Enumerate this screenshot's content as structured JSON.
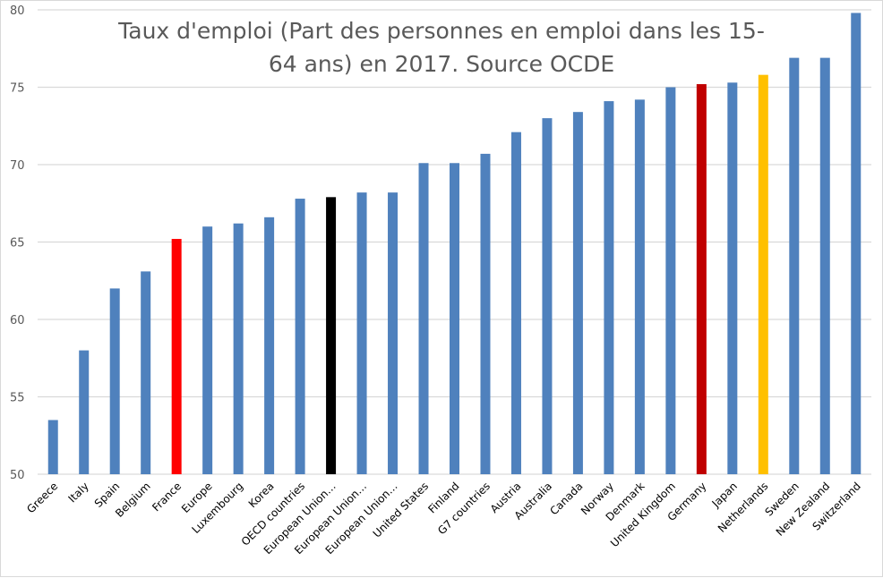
{
  "chart_data": {
    "type": "bar",
    "title_lines": [
      "Taux d'emploi (Part des personnes en emploi dans les 15-",
      "64 ans) en 2017. Source OCDE"
    ],
    "xlabel": "",
    "ylabel": "",
    "ylim": [
      50,
      80
    ],
    "yticks": [
      50,
      55,
      60,
      65,
      70,
      75,
      80
    ],
    "grid": true,
    "legend": "none",
    "categories": [
      "Greece",
      "Italy",
      "Spain",
      "Belgium",
      "France",
      "Europe",
      "Luxembourg",
      "Korea",
      "OECD countries",
      "European Union…",
      "European Union…",
      "European Union…",
      "United States",
      "Finland",
      "G7 countries",
      "Austria",
      "Australia",
      "Canada",
      "Norway",
      "Denmark",
      "United Kingdom",
      "Germany",
      "Japan",
      "Netherlands",
      "Sweden",
      "New Zealand",
      "Switzerland"
    ],
    "values": [
      53.5,
      58.0,
      62.0,
      63.1,
      65.2,
      66.0,
      66.2,
      66.6,
      67.8,
      67.9,
      68.2,
      68.2,
      70.1,
      70.1,
      70.7,
      72.1,
      73.0,
      73.4,
      74.1,
      74.2,
      75.0,
      75.2,
      75.3,
      75.8,
      76.9,
      76.9,
      79.8
    ],
    "colors": [
      "#4f81bd",
      "#4f81bd",
      "#4f81bd",
      "#4f81bd",
      "#ff0000",
      "#4f81bd",
      "#4f81bd",
      "#4f81bd",
      "#4f81bd",
      "#000000",
      "#4f81bd",
      "#4f81bd",
      "#4f81bd",
      "#4f81bd",
      "#4f81bd",
      "#4f81bd",
      "#4f81bd",
      "#4f81bd",
      "#4f81bd",
      "#4f81bd",
      "#4f81bd",
      "#c00000",
      "#4f81bd",
      "#ffc000",
      "#4f81bd",
      "#4f81bd",
      "#4f81bd"
    ]
  },
  "style": {
    "gridline_color": "#d9d9d9",
    "axis_color": "#d9d9d9",
    "default_bar_color": "#4f81bd"
  }
}
